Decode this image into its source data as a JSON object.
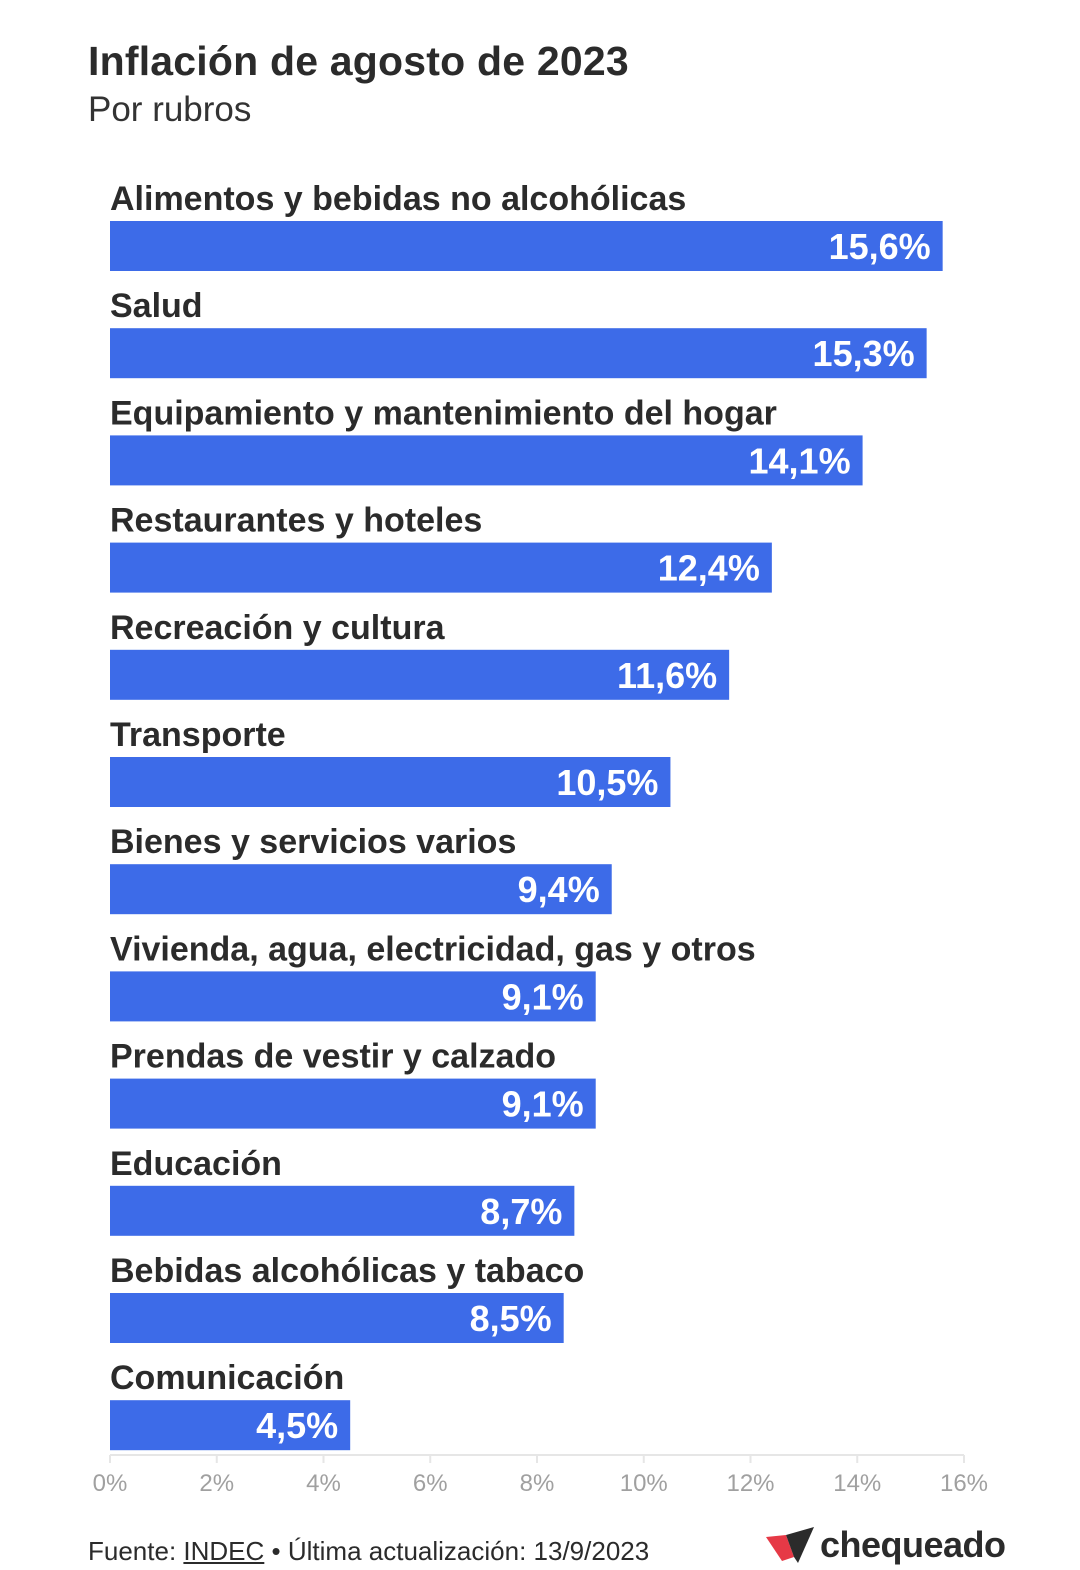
{
  "title": "Inflación de agosto de 2023",
  "subtitle": "Por rubros",
  "footer": {
    "source_prefix": "Fuente: ",
    "source_link": "INDEC",
    "separator": " • ",
    "updated": "Última actualización: 13/9/2023"
  },
  "logo": {
    "text": "chequeado",
    "icon": "chequeado-logo-mark"
  },
  "colors": {
    "bar": "#3d6be8",
    "bar_label": "#ffffff",
    "category_label": "#2b2b2b",
    "tick_label": "#a0a0a0",
    "axis_line": "#e6e6e6",
    "logo_red": "#e63946"
  },
  "chart_data": {
    "type": "bar",
    "orientation": "horizontal",
    "categories": [
      "Alimentos y bebidas no alcohólicas",
      "Salud",
      "Equipamiento y mantenimiento del hogar",
      "Restaurantes y hoteles",
      "Recreación y cultura",
      "Transporte",
      "Bienes y servicios varios",
      "Vivienda, agua, electricidad, gas y otros",
      "Prendas de vestir y calzado",
      "Educación",
      "Bebidas alcohólicas y tabaco",
      "Comunicación"
    ],
    "values": [
      15.6,
      15.3,
      14.1,
      12.4,
      11.6,
      10.5,
      9.4,
      9.1,
      9.1,
      8.7,
      8.5,
      4.5
    ],
    "value_labels": [
      "15,6%",
      "15,3%",
      "14,1%",
      "12,4%",
      "11,6%",
      "10,5%",
      "9,4%",
      "9,1%",
      "9,1%",
      "8,7%",
      "8,5%",
      "4,5%"
    ],
    "xlim": [
      0,
      16
    ],
    "x_ticks": [
      0,
      2,
      4,
      6,
      8,
      10,
      12,
      14,
      16
    ],
    "x_tick_labels": [
      "0%",
      "2%",
      "4%",
      "6%",
      "8%",
      "10%",
      "12%",
      "14%",
      "16%"
    ],
    "grid": false,
    "legend": false
  }
}
